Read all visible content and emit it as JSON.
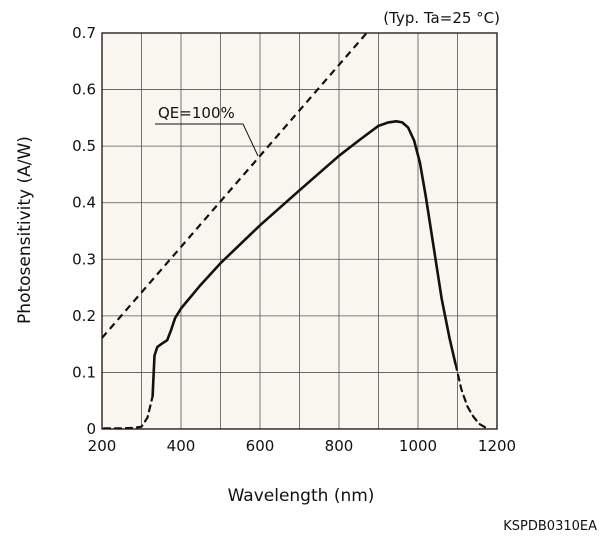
{
  "chart_data": {
    "type": "line",
    "condition_note": "(Typ. Ta=25 °C)",
    "xlabel": "Wavelength (nm)",
    "ylabel": "Photosensitivity (A/W)",
    "xlim": [
      200,
      1200
    ],
    "ylim": [
      0,
      0.7
    ],
    "x_ticks": [
      200,
      400,
      600,
      800,
      1000,
      1200
    ],
    "x_tick_labels": [
      "200",
      "400",
      "600",
      "800",
      "1000",
      "1200"
    ],
    "y_ticks": [
      0,
      0.1,
      0.2,
      0.3,
      0.4,
      0.5,
      0.6,
      0.7
    ],
    "y_tick_labels": [
      "0",
      "0.1",
      "0.2",
      "0.3",
      "0.4",
      "0.5",
      "0.6",
      "0.7"
    ],
    "grid": true,
    "grid_minor_x_step": 100,
    "background_color": "#f8f6ee",
    "qe_reference": {
      "label": "QE=100%",
      "style": "dashed",
      "points": [
        [
          200,
          0.161
        ],
        [
          870,
          0.7
        ]
      ]
    },
    "series": [
      {
        "style": "solid",
        "points": [
          [
            328,
            0.058
          ],
          [
            333,
            0.13
          ],
          [
            340,
            0.145
          ],
          [
            350,
            0.15
          ],
          [
            365,
            0.157
          ],
          [
            375,
            0.175
          ],
          [
            385,
            0.196
          ],
          [
            400,
            0.213
          ],
          [
            450,
            0.255
          ],
          [
            500,
            0.293
          ],
          [
            600,
            0.36
          ],
          [
            700,
            0.422
          ],
          [
            800,
            0.483
          ],
          [
            850,
            0.51
          ],
          [
            900,
            0.536
          ],
          [
            925,
            0.542
          ],
          [
            945,
            0.544
          ],
          [
            960,
            0.542
          ],
          [
            975,
            0.533
          ],
          [
            990,
            0.51
          ],
          [
            1005,
            0.47
          ],
          [
            1020,
            0.41
          ],
          [
            1040,
            0.32
          ],
          [
            1060,
            0.23
          ],
          [
            1080,
            0.16
          ],
          [
            1095,
            0.115
          ]
        ]
      },
      {
        "style": "dashed",
        "segment": "short-wavelength tail",
        "points": [
          [
            205,
            0.001
          ],
          [
            240,
            0.001
          ],
          [
            280,
            0.002
          ],
          [
            300,
            0.004
          ],
          [
            315,
            0.02
          ],
          [
            322,
            0.04
          ],
          [
            328,
            0.058
          ]
        ]
      },
      {
        "style": "dashed",
        "segment": "long-wavelength tail",
        "points": [
          [
            1095,
            0.115
          ],
          [
            1110,
            0.07
          ],
          [
            1125,
            0.04
          ],
          [
            1140,
            0.022
          ],
          [
            1155,
            0.009
          ],
          [
            1170,
            0.003
          ],
          [
            1178,
            0.001
          ]
        ]
      }
    ],
    "doc_code": "KSPDB0310EA"
  }
}
